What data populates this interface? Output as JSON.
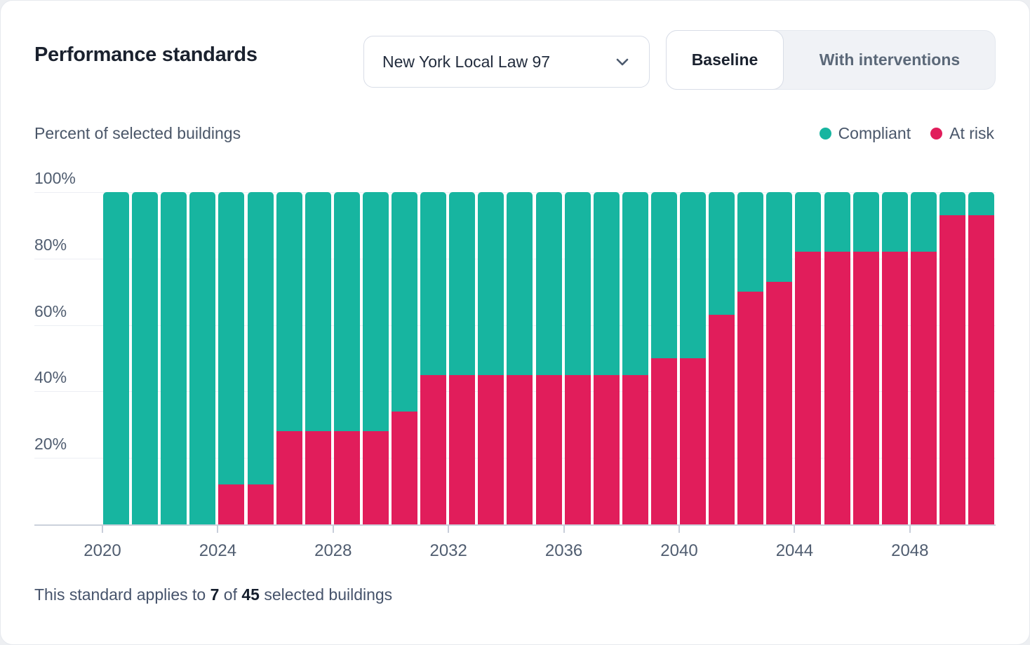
{
  "header": {
    "title": "Performance standards",
    "standard_dropdown": {
      "value": "New York Local Law 97"
    },
    "scenario_toggle": {
      "baseline_label": "Baseline",
      "interventions_label": "With interventions",
      "active": "Baseline"
    }
  },
  "chart_data": {
    "type": "bar",
    "stacked": true,
    "title": "Percent of selected buildings",
    "categories": [
      2020,
      2021,
      2022,
      2023,
      2024,
      2025,
      2026,
      2027,
      2028,
      2029,
      2030,
      2031,
      2032,
      2033,
      2034,
      2035,
      2036,
      2037,
      2038,
      2039,
      2040,
      2041,
      2042,
      2043,
      2044,
      2045,
      2046,
      2047,
      2048,
      2049,
      2050
    ],
    "series": [
      {
        "name": "Compliant",
        "color": "#17B5A0",
        "values": [
          100,
          100,
          100,
          100,
          88,
          88,
          72,
          72,
          72,
          72,
          66,
          55,
          55,
          55,
          55,
          55,
          55,
          55,
          55,
          50,
          50,
          37,
          30,
          27,
          18,
          18,
          18,
          18,
          18,
          7,
          7
        ]
      },
      {
        "name": "At risk",
        "color": "#E11D5B",
        "values": [
          0,
          0,
          0,
          0,
          12,
          12,
          28,
          28,
          28,
          28,
          34,
          45,
          45,
          45,
          45,
          45,
          45,
          45,
          45,
          50,
          50,
          63,
          70,
          73,
          82,
          82,
          82,
          82,
          82,
          93,
          93
        ]
      }
    ],
    "x_tick_labels": [
      "2020",
      "2024",
      "2028",
      "2032",
      "2036",
      "2040",
      "2044",
      "2048"
    ],
    "y_tick_labels": [
      "100%",
      "80%",
      "60%",
      "40%",
      "20%"
    ],
    "ylim": [
      0,
      100
    ],
    "grid": "horizontal",
    "legend_position": "top-right"
  },
  "footer": {
    "text_before_count": "This standard applies to ",
    "count": "7",
    "text_between": " of ",
    "total": "45",
    "text_after": " selected buildings"
  },
  "colors": {
    "compliant": "#17B5A0",
    "at_risk": "#E11D5B",
    "gridline": "#ECEEF3",
    "axis_line": "#CBD1DB",
    "title_text": "#1A212E",
    "secondary_text": "#4A5668"
  }
}
